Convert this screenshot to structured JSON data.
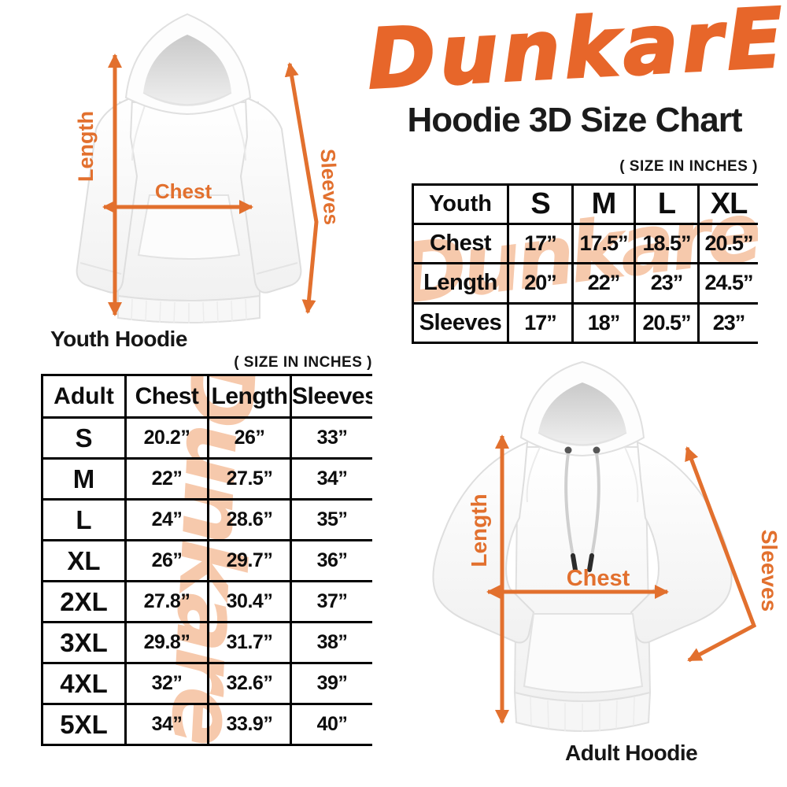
{
  "colors": {
    "accent_orange": "#e7662a",
    "arrow_orange": "#e2702e",
    "watermark_peach": "#f6c9ac",
    "table_border": "#000000",
    "text": "#111111",
    "background": "#ffffff"
  },
  "logo": {
    "text": "DunkarE"
  },
  "header": {
    "title": "Hoodie 3D Size Chart"
  },
  "notes": {
    "youth": "( SIZE IN INCHES )",
    "adult": "( SIZE IN INCHES )"
  },
  "watermark_text": "Dunkare",
  "figures": {
    "youth": {
      "caption": "Youth Hoodie",
      "length_label": "Length",
      "chest_label": "Chest",
      "sleeves_label": "Sleeves"
    },
    "adult": {
      "caption": "Adult Hoodie",
      "length_label": "Length",
      "chest_label": "Chest",
      "sleeves_label": "Sleeves"
    }
  },
  "youth_table": {
    "header": [
      "Youth",
      "S",
      "M",
      "L",
      "XL"
    ],
    "rows": [
      {
        "label": "Chest",
        "values": [
          "17”",
          "17.5”",
          "18.5”",
          "20.5”"
        ]
      },
      {
        "label": "Length",
        "values": [
          "20”",
          "22”",
          "23”",
          "24.5”"
        ]
      },
      {
        "label": "Sleeves",
        "values": [
          "17”",
          "18”",
          "20.5”",
          "23”"
        ]
      }
    ]
  },
  "adult_table": {
    "header": [
      "Adult",
      "Chest",
      "Length",
      "Sleeves"
    ],
    "rows": [
      {
        "label": "S",
        "values": [
          "20.2”",
          "26”",
          "33”"
        ]
      },
      {
        "label": "M",
        "values": [
          "22”",
          "27.5”",
          "34”"
        ]
      },
      {
        "label": "L",
        "values": [
          "24”",
          "28.6”",
          "35”"
        ]
      },
      {
        "label": "XL",
        "values": [
          "26”",
          "29.7”",
          "36”"
        ]
      },
      {
        "label": "2XL",
        "values": [
          "27.8”",
          "30.4”",
          "37”"
        ]
      },
      {
        "label": "3XL",
        "values": [
          "29.8”",
          "31.7”",
          "38”"
        ]
      },
      {
        "label": "4XL",
        "values": [
          "32”",
          "32.6”",
          "39”"
        ]
      },
      {
        "label": "5XL",
        "values": [
          "34”",
          "33.9”",
          "40”"
        ]
      }
    ]
  }
}
